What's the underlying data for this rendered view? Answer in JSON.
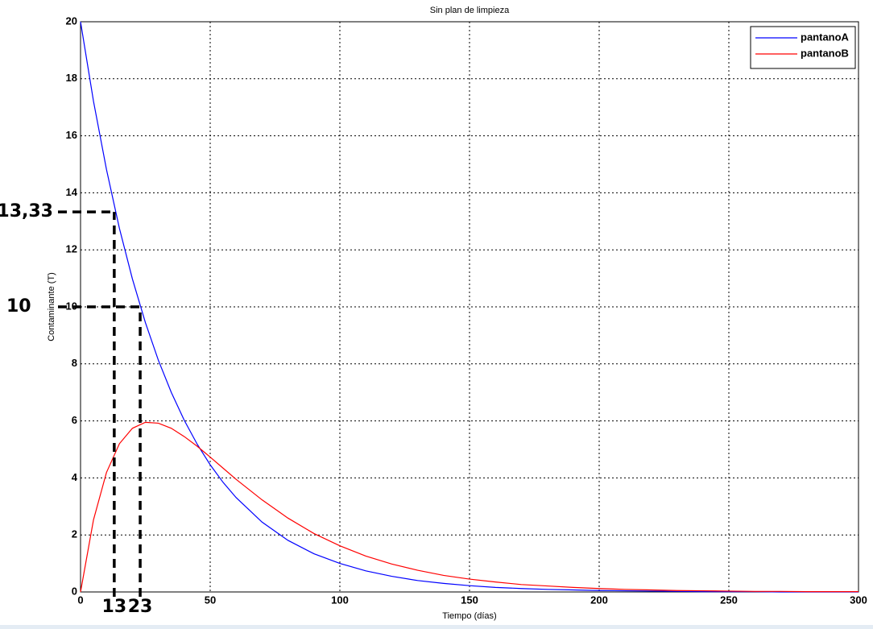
{
  "chart_data": {
    "type": "line",
    "title": "Sin plan de limpieza",
    "xlabel": "Tiempo (días)",
    "ylabel": "Contaminante (T)",
    "x": [
      0,
      5,
      10,
      15,
      20,
      25,
      30,
      35,
      40,
      45,
      50,
      55,
      60,
      70,
      80,
      90,
      100,
      110,
      120,
      130,
      140,
      150,
      160,
      170,
      180,
      190,
      200,
      210,
      220,
      230,
      240,
      250,
      260,
      270,
      280,
      290,
      300
    ],
    "series": [
      {
        "name": "pantanoA",
        "color": "#0000ff",
        "values": [
          20,
          17.21,
          14.82,
          12.75,
          10.98,
          9.45,
          8.13,
          7.0,
          6.02,
          5.18,
          4.46,
          3.84,
          3.31,
          2.45,
          1.81,
          1.34,
          1.0,
          0.74,
          0.55,
          0.4,
          0.3,
          0.22,
          0.16,
          0.12,
          0.09,
          0.07,
          0.05,
          0.04,
          0.03,
          0.02,
          0.01,
          0.01,
          0.01,
          0,
          0,
          0,
          0
        ]
      },
      {
        "name": "pantanoB",
        "color": "#ff0000",
        "values": [
          0,
          2.53,
          4.19,
          5.2,
          5.74,
          5.95,
          5.92,
          5.74,
          5.45,
          5.11,
          4.73,
          4.34,
          3.95,
          3.23,
          2.59,
          2.05,
          1.62,
          1.26,
          0.98,
          0.76,
          0.58,
          0.45,
          0.35,
          0.26,
          0.21,
          0.16,
          0.12,
          0.09,
          0.07,
          0.05,
          0.04,
          0.03,
          0.02,
          0.02,
          0.01,
          0.01,
          0.01
        ]
      }
    ],
    "xlim": [
      0,
      300
    ],
    "xticks": [
      0,
      50,
      100,
      150,
      200,
      250,
      300
    ],
    "ylim": [
      0,
      20
    ],
    "yticks": [
      0,
      2,
      4,
      6,
      8,
      10,
      12,
      14,
      16,
      18,
      20
    ],
    "grid": true,
    "legend": "upper right",
    "annotations": [
      {
        "x": 13,
        "y": {
          "value": 13.33,
          "label": "13,33"
        }
      },
      {
        "x": 23,
        "y": 10
      }
    ]
  }
}
